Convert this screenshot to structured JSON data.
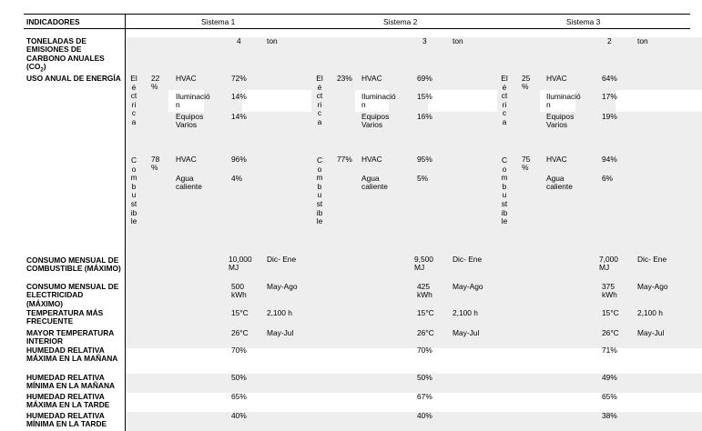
{
  "header": {
    "indicadores": "INDICADORES",
    "systems": [
      "Sistema 1",
      "Sistema 2",
      "Sistema 3"
    ]
  },
  "labels": {
    "toneladas": "TONELADAS DE EMISIONES DE CARBONO ANUALES (CO",
    "toneladas_sub": "2",
    "toneladas_end": ")",
    "uso": "USO ANUAL DE ENERGÍA",
    "consumo_comb": "CONSUMO MENSUAL DE COMBUSTIBLE (MÁXIMO)",
    "consumo_elec": "CONSUMO MENSUAL DE ELECTRICIDAD (MÁXIMO)",
    "temp_frec": "TEMPERATURA MÁS FRECUENTE",
    "temp_max": "MAYOR TEMPERATURA INTERIOR",
    "hum_max_man": "HUMEDAD RELATIVA MÁXIMA EN LA MAÑANA",
    "hum_min_man": "HUMEDAD RELATIVA MÍNIMA EN LA MAÑANA",
    "hum_max_tar": "HUMEDAD RELATIVA MÁXIMA EN LA TARDE",
    "hum_min_tar": "HUMEDAD RELATIVA MÍNIMA EN LA TARDE"
  },
  "energy_types": {
    "elec": "Eléctrica",
    "comb": "Combustible"
  },
  "end_use_labels": {
    "hvac": "HVAC",
    "ilum": "Iluminació n",
    "equipos": "Equipos Varios",
    "agua": "Agua caliente"
  },
  "systems": [
    {
      "tons": "4",
      "tons_unit": "ton",
      "elec_pct": "22 %",
      "comb_pct": "78 %",
      "hvac_e": "72%",
      "ilum": "14%",
      "equipos": "14%",
      "hvac_c": "96%",
      "agua": "4%",
      "comb_val": "10,000 MJ",
      "comb_period": "Dic- Ene",
      "elec_val": "500 kWh",
      "elec_period": "May-Ago",
      "temp_frec": "15°C",
      "temp_frec_hours": "2,100 h",
      "temp_max": "26°C",
      "temp_max_period": "May-Jul",
      "hum_max_man": "70%",
      "hum_min_man": "50%",
      "hum_max_tar": "65%",
      "hum_min_tar": "40%"
    },
    {
      "tons": "3",
      "tons_unit": "ton",
      "elec_pct": "23%",
      "comb_pct": "77%",
      "hvac_e": "69%",
      "ilum": "15%",
      "equipos": "16%",
      "hvac_c": "95%",
      "agua": "5%",
      "comb_val": "9,500 MJ",
      "comb_period": "Dic- Ene",
      "elec_val": "425 kWh",
      "elec_period": "May-Ago",
      "temp_frec": "15°C",
      "temp_frec_hours": "2,100 h",
      "temp_max": "26°C",
      "temp_max_period": "May-Jul",
      "hum_max_man": "70%",
      "hum_min_man": "50%",
      "hum_max_tar": "67%",
      "hum_min_tar": "40%"
    },
    {
      "tons": "2",
      "tons_unit": "ton",
      "elec_pct": "25 %",
      "comb_pct": "75 %",
      "hvac_e": "64%",
      "ilum": "17%",
      "equipos": "19%",
      "hvac_c": "94%",
      "agua": "6%",
      "comb_val": "7,000 MJ",
      "comb_period": "Dic- Ene",
      "elec_val": "375 kWh",
      "elec_period": "May-Ago",
      "temp_frec": "15°C",
      "temp_frec_hours": "2,100 h",
      "temp_max": "26°C",
      "temp_max_period": "May-Jul",
      "hum_max_man": "71%",
      "hum_min_man": "49%",
      "hum_max_tar": "65%",
      "hum_min_tar": "38%"
    }
  ]
}
